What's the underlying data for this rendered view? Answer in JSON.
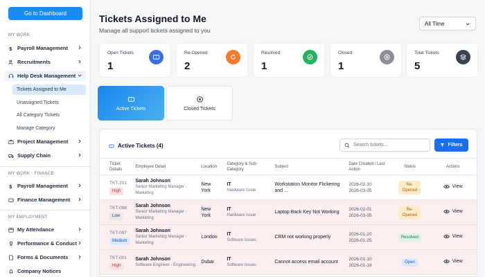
{
  "sidebar": {
    "dashboard_button": "Go to Dashboard",
    "sections": {
      "my_work": "MY WORK",
      "my_work_finance": "MY WORK - FINANCE",
      "my_employment": "MY EMPLOYMENT"
    },
    "items": {
      "payroll": "Payroll Management",
      "recruitments": "Recruitments",
      "help_desk": "Help Desk Management",
      "project": "Project Management",
      "supply_chain": "Supply Chain",
      "payroll_finance": "Payroll Management",
      "finance": "Finance Management",
      "attendance": "My Attendance",
      "performance": "Performance & Conduct",
      "forms": "Forms & Documents",
      "notices": "Company Notices"
    },
    "sub_items": {
      "assigned": "Tickets Assigned to Me",
      "unassigned": "Unassigned Tickets",
      "all_category": "All Category Tickets",
      "manage_category": "Manage Category"
    }
  },
  "header": {
    "title": "Tickets Assigned to Me",
    "subtitle": "Manage all support tickets assigned to you",
    "time_filter": "All Time"
  },
  "stats": [
    {
      "label": "Open Tickets",
      "value": "1",
      "color": "#3b6fe0"
    },
    {
      "label": "Re-Opened",
      "value": "2",
      "color": "#f47c2b"
    },
    {
      "label": "Resolved",
      "value": "1",
      "color": "#22b35e"
    },
    {
      "label": "Closed",
      "value": "1",
      "color": "#8a8f98"
    },
    {
      "label": "Total Tickets",
      "value": "5",
      "color": "#3a4250"
    }
  ],
  "tabs": {
    "active": "Active Tickets",
    "closed": "Closed Tickets"
  },
  "panel": {
    "title": "Active Tickets (4)",
    "search_placeholder": "Search tickets...",
    "filters_label": "Filters"
  },
  "columns": {
    "ticket": "Ticket Details",
    "employee": "Employee Detail",
    "location": "Location",
    "category": "Category & Sub-Category",
    "subject": "Subject",
    "date": "Date Created / Last Action",
    "status": "Status",
    "actions": "Actions"
  },
  "rows": [
    {
      "id": "TKT-201",
      "priority": "High",
      "name": "Sarah Johnson",
      "role": "Senior Marketing Manager - Marketing",
      "location": "New York",
      "category": "IT",
      "subcategory": "Hardware Issue",
      "subject": "Workstation Monitor Flickering and ...",
      "created": "2026-02-10",
      "last": "2026-03-05",
      "status": "Re-Opened",
      "action": "View"
    },
    {
      "id": "TKT-098",
      "priority": "Low",
      "name": "Sarah Johnson",
      "role": "Senior Marketing Manager - Marketing",
      "location": "New York",
      "category": "IT",
      "subcategory": "Hardware Issue",
      "subject": "Laptop Back Key Not Working",
      "created": "2026-02-01",
      "last": "2026-03-05",
      "status": "Re-Opened",
      "action": "View"
    },
    {
      "id": "TKT-097",
      "priority": "Medium",
      "name": "Sarah Johnson",
      "role": "Senior Marketing Manager - Marketing",
      "location": "London",
      "category": "IT",
      "subcategory": "Software Issues",
      "subject": "CRM not working properly",
      "created": "2026-01-20",
      "last": "2026-01-25",
      "status": "Resolved",
      "action": "View"
    },
    {
      "id": "TKT-001",
      "priority": "High",
      "name": "Sarah Johnson",
      "role": "Software Engineer - Engineering",
      "location": "Dubai",
      "category": "IT",
      "subcategory": "Software Issues",
      "subject": "Cannot access email account",
      "created": "2026-01-10",
      "last": "2026-01-18",
      "status": "Open",
      "action": "View"
    }
  ]
}
